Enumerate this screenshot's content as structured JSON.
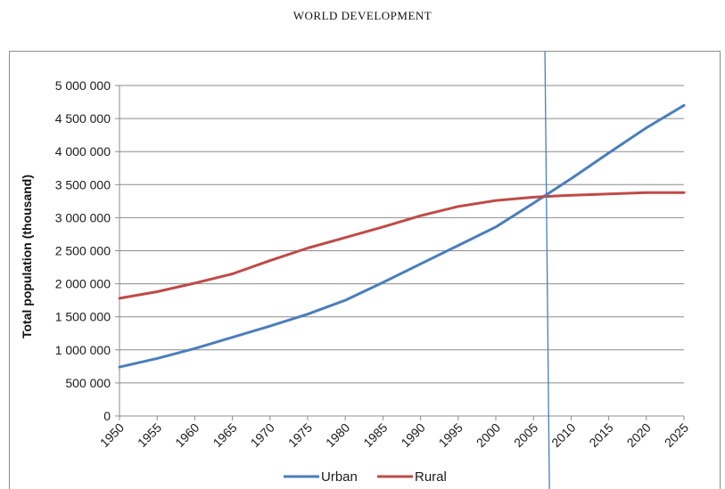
{
  "header": {
    "title": "WORLD DEVELOPMENT"
  },
  "chart_data": {
    "type": "line",
    "title": "",
    "xlabel": "",
    "ylabel": "Total population (thousand)",
    "ylim": [
      0,
      5000000
    ],
    "yticks": [
      0,
      500000,
      1000000,
      1500000,
      2000000,
      2500000,
      3000000,
      3500000,
      4000000,
      4500000,
      5000000
    ],
    "ytick_labels": [
      "0",
      "500 000",
      "1 000 000",
      "1 500 000",
      "2 000 000",
      "2 500 000",
      "3 000 000",
      "3 500 000",
      "4 000 000",
      "4 500 000",
      "5 000 000"
    ],
    "x": [
      1950,
      1955,
      1960,
      1965,
      1970,
      1975,
      1980,
      1985,
      1990,
      1995,
      2000,
      2005,
      2010,
      2015,
      2020,
      2025
    ],
    "xtick_labels": [
      "1950",
      "1955",
      "1960",
      "1965",
      "1970",
      "1975",
      "1980",
      "1985",
      "1990",
      "1995",
      "2000",
      "2005",
      "2010",
      "2015",
      "2020",
      "2025"
    ],
    "grid": true,
    "legend_position": "bottom",
    "series": [
      {
        "name": "Urban",
        "color": "#4a7ebb",
        "values": [
          740000,
          870000,
          1020000,
          1190000,
          1360000,
          1540000,
          1750000,
          2020000,
          2300000,
          2580000,
          2860000,
          3220000,
          3590000,
          3980000,
          4360000,
          4700000
        ]
      },
      {
        "name": "Rural",
        "color": "#be4b48",
        "values": [
          1780000,
          1880000,
          2010000,
          2150000,
          2350000,
          2540000,
          2700000,
          2860000,
          3030000,
          3170000,
          3260000,
          3310000,
          3340000,
          3360000,
          3380000,
          3380000
        ]
      }
    ],
    "annotations": [
      {
        "type": "vertical-line",
        "x": 2007,
        "color": "#4a7ebb"
      }
    ]
  }
}
